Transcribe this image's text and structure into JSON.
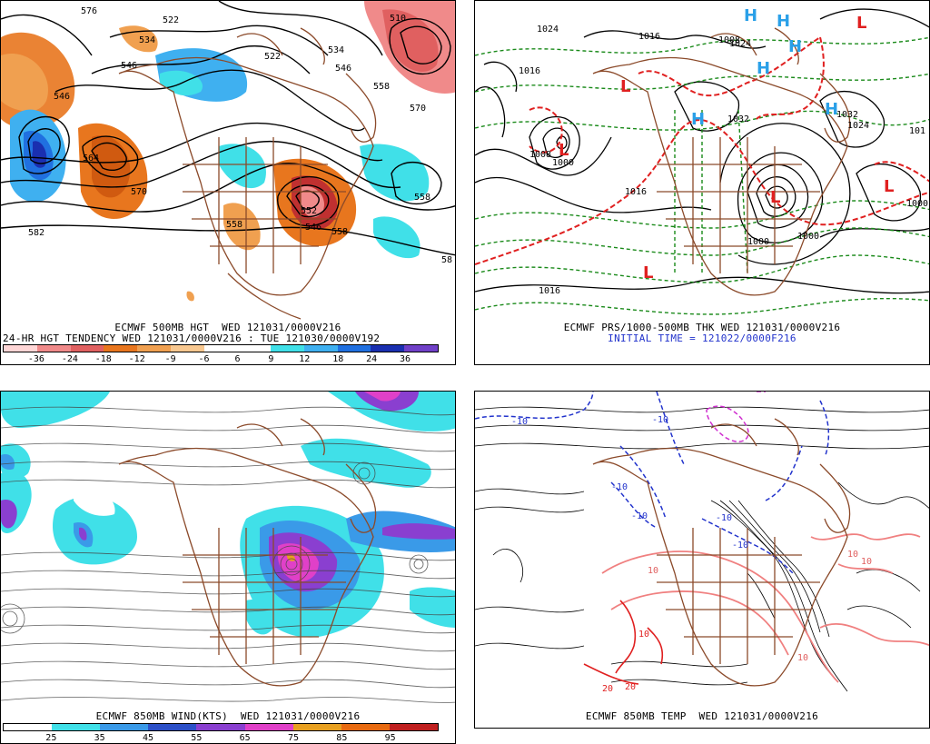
{
  "panels": {
    "tl": {
      "caption1": "ECMWF 500MB HGT  WED 121031/0000V216",
      "caption2": "24-HR HGT TENDENCY WED 121031/0000V216 : TUE 121030/0000V192",
      "colorbar": {
        "colors": [
          "#ffd6d6",
          "#f08a8a",
          "#e06060",
          "#e8761e",
          "#f0a050",
          "#f8c890",
          "#ffffff",
          "#ffffff",
          "#40e0e8",
          "#3fb0f0",
          "#2070e0",
          "#1a2fb0",
          "#7040c8"
        ],
        "ticks": [
          "-36",
          "-24",
          "-18",
          "-12",
          "-9",
          "-6",
          "6",
          "9",
          "12",
          "18",
          "24",
          "36"
        ]
      },
      "contour_labels": [
        "576",
        "522",
        "534",
        "546",
        "522",
        "510",
        "534",
        "546",
        "558",
        "570",
        "546",
        "564",
        "570",
        "558",
        "552",
        "558",
        "546",
        "582",
        "558",
        "58"
      ]
    },
    "tr": {
      "caption1": "ECMWF PRS/1000-500MB THK WED 121031/0000V216",
      "caption2": "INITIAL TIME = 121022/0000F216",
      "pressure_labels": [
        "1024",
        "1016",
        "1008",
        "1024",
        "1032",
        "1000",
        "1032",
        "1024",
        "1016",
        "1000",
        "1000",
        "1008",
        "1016",
        "1000",
        "1016",
        "101"
      ],
      "highs": [
        "H",
        "H",
        "H",
        "H",
        "H",
        "H"
      ],
      "lows": [
        "L",
        "L",
        "L",
        "L",
        "L",
        "L"
      ]
    },
    "bl": {
      "caption1": "ECMWF 850MB WIND(KTS)  WED 121031/0000V216",
      "colorbar": {
        "colors": [
          "#ffffff",
          "#40e0e8",
          "#3a9ae8",
          "#2c50c8",
          "#8a3fd0",
          "#e040c8",
          "#e8a020",
          "#e86a10",
          "#c02020"
        ],
        "ticks": [
          "25",
          "35",
          "45",
          "55",
          "65",
          "75",
          "85",
          "95"
        ]
      }
    },
    "br": {
      "caption1": "ECMWF 850MB TEMP  WED 121031/0000V216",
      "temp_labels": [
        "-10",
        "-10",
        "-10",
        "-10",
        "-10",
        "-10",
        "10",
        "10",
        "10",
        "10",
        "20",
        "20",
        "10"
      ]
    }
  }
}
